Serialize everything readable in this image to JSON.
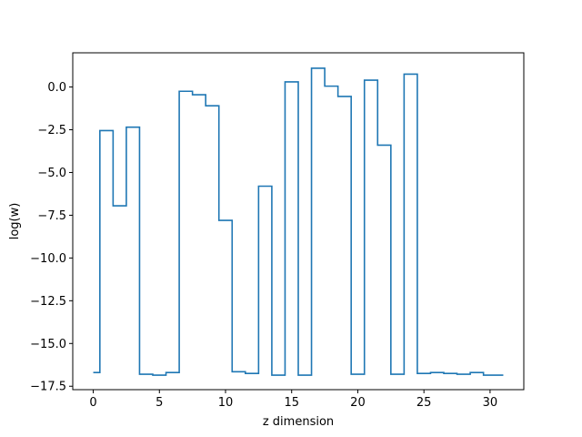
{
  "chart_data": {
    "type": "line",
    "drawstyle": "steps-mid",
    "title": "",
    "xlabel": "z dimension",
    "ylabel": "log(w)",
    "xlim": [
      -1.55,
      32.55
    ],
    "ylim": [
      -17.7,
      2.0
    ],
    "xticks": [
      0,
      5,
      10,
      15,
      20,
      25,
      30
    ],
    "yticks": [
      -17.5,
      -15.0,
      -12.5,
      -10.0,
      -7.5,
      -5.0,
      -2.5,
      0.0
    ],
    "ytick_labels": [
      "−17.5",
      "−15.0",
      "−12.5",
      "−10.0",
      "−7.5",
      "−5.0",
      "−2.5",
      "0.0"
    ],
    "grid": false,
    "series": [
      {
        "color": "#1f77b4",
        "x": [
          0,
          1,
          2,
          3,
          4,
          5,
          6,
          7,
          8,
          9,
          10,
          11,
          12,
          13,
          14,
          15,
          16,
          17,
          18,
          19,
          20,
          21,
          22,
          23,
          24,
          25,
          26,
          27,
          28,
          29,
          30,
          31
        ],
        "values": [
          -16.7,
          -2.55,
          -6.95,
          -2.35,
          -16.8,
          -16.85,
          -16.7,
          -0.25,
          -0.45,
          -1.1,
          -7.8,
          -16.65,
          -16.75,
          -5.8,
          -16.85,
          0.3,
          -16.85,
          1.1,
          0.05,
          -0.55,
          -16.8,
          0.4,
          -3.4,
          -16.8,
          0.75,
          -16.75,
          -16.7,
          -16.75,
          -16.8,
          -16.7,
          -16.85,
          -16.85
        ]
      }
    ]
  }
}
